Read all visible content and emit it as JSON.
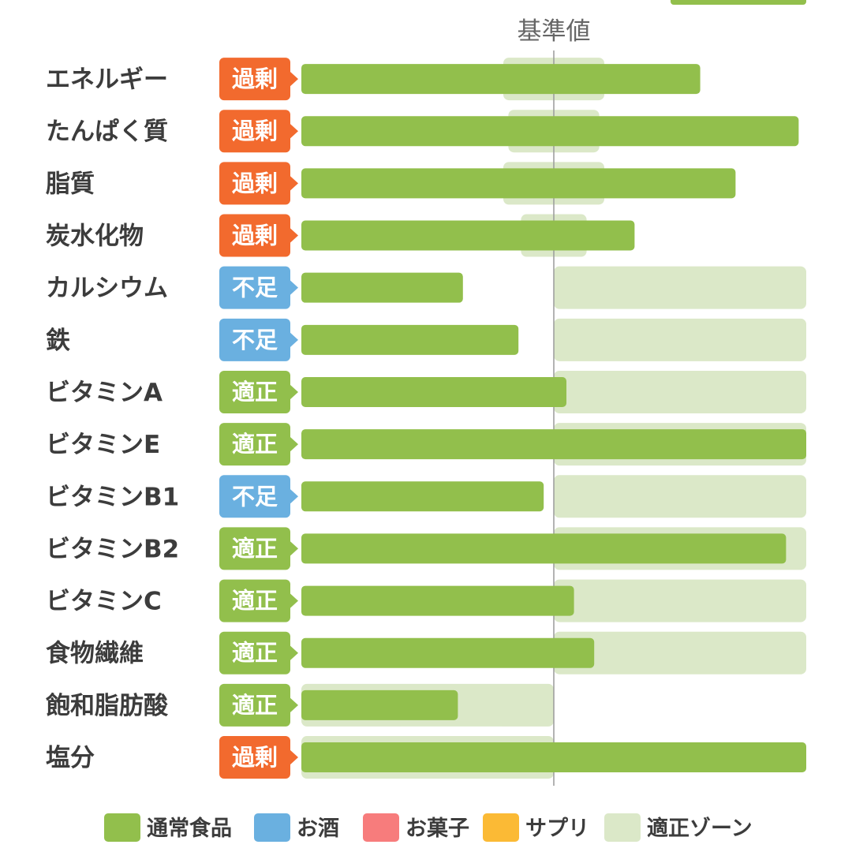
{
  "chart_data": {
    "type": "bar",
    "orientation": "horizontal",
    "reference_label": "基準値",
    "reference_value": 100,
    "xlim": [
      0,
      200
    ],
    "categories": [
      "エネルギー",
      "たんぱく質",
      "脂質",
      "炭水化物",
      "カルシウム",
      "鉄",
      "ビタミンA",
      "ビタミンE",
      "ビタミンB1",
      "ビタミンB2",
      "ビタミンC",
      "食物繊維",
      "飽和脂肪酸",
      "塩分"
    ],
    "status": [
      "過剰",
      "過剰",
      "過剰",
      "過剰",
      "不足",
      "不足",
      "適正",
      "適正",
      "不足",
      "適正",
      "適正",
      "適正",
      "適正",
      "過剰"
    ],
    "series": [
      {
        "name": "通常食品",
        "color": "#92bf4c",
        "values": [
          158,
          197,
          172,
          132,
          64,
          86,
          105,
          200,
          96,
          192,
          108,
          116,
          62,
          200
        ]
      }
    ],
    "appropriate_zone": [
      [
        80,
        120
      ],
      [
        82,
        118
      ],
      [
        80,
        120
      ],
      [
        87,
        113
      ],
      [
        100,
        200
      ],
      [
        100,
        200
      ],
      [
        100,
        200
      ],
      [
        100,
        200
      ],
      [
        100,
        200
      ],
      [
        100,
        200
      ],
      [
        100,
        200
      ],
      [
        100,
        200
      ],
      [
        0,
        100
      ],
      [
        0,
        100
      ]
    ],
    "status_colors": {
      "過剰": "#f26a2e",
      "不足": "#6ab0e0",
      "適正": "#92bf4c"
    },
    "legend": [
      {
        "label": "通常食品",
        "color": "#92bf4c"
      },
      {
        "label": "お酒",
        "color": "#6ab0e0"
      },
      {
        "label": "お菓子",
        "color": "#f77c7c"
      },
      {
        "label": "サプリ",
        "color": "#fbba35"
      },
      {
        "label": "適正ゾーン",
        "color": "#dbe8c8"
      }
    ],
    "legend_placement": "bottom",
    "grid": false
  }
}
